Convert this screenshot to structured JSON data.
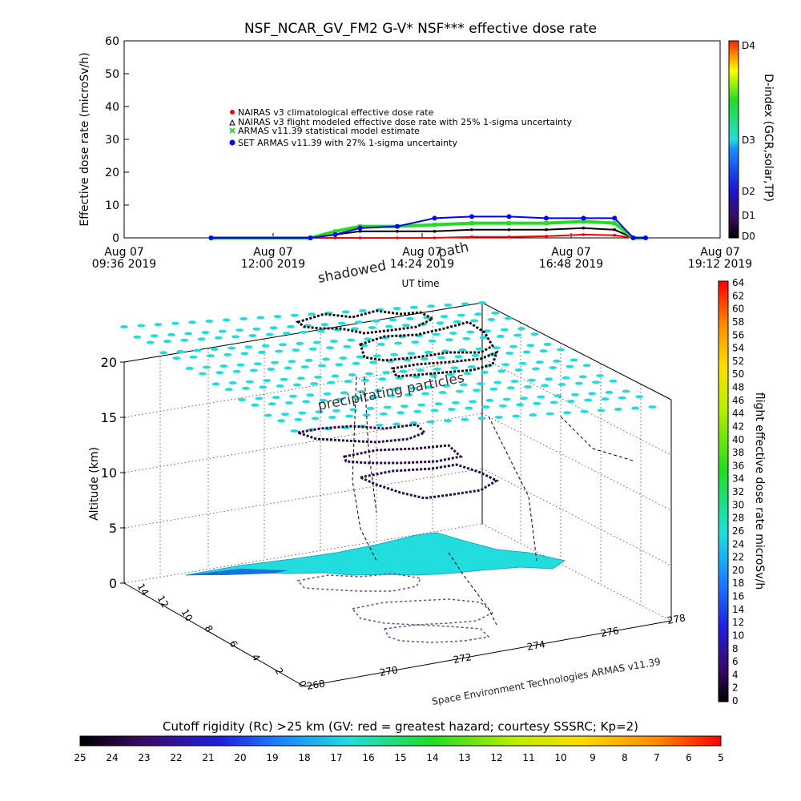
{
  "title": "NSF_NCAR_GV_FM2 G-V* NSF*** effective dose rate",
  "colors": {
    "nairas_clim": "#ff0000",
    "nairas_flight": "#000000",
    "armas_stat": "#22dd22",
    "set_armas": "#0000ff",
    "cyan": "#22dddd"
  },
  "top_chart": {
    "ylabel": "Effective dose rate (microSv/h)",
    "xlabel": "UT time",
    "y_ticks": [
      "0",
      "10",
      "20",
      "30",
      "40",
      "50",
      "60"
    ],
    "x_ticks": [
      {
        "line1": "Aug 07",
        "line2": "09:36 2019"
      },
      {
        "line1": "Aug 07",
        "line2": "12:00 2019"
      },
      {
        "line1": "Aug 07",
        "line2": "14:24 2019"
      },
      {
        "line1": "Aug 07",
        "line2": "16:48 2019"
      },
      {
        "line1": "Aug 07",
        "line2": "19:12 2019"
      }
    ],
    "legend": [
      "NAIRAS v3 climatological effective dose rate",
      "NAIRAS v3 flight modeled effective dose rate with 25% 1-sigma uncertainty",
      "ARMAS v11.39 statistical model estimate",
      "SET ARMAS v11.39 with 27% 1-sigma uncertainty"
    ],
    "d_index_label": "D-index (GCR,solar,TP)",
    "d_ticks": [
      "D0",
      "D1",
      "D2",
      "D3",
      "D4"
    ]
  },
  "overlay_text": {
    "shadowed": "shadowed",
    "path": "path",
    "precip": "precipitating particles",
    "credit": "Space Environment Technologies ARMAS v11.39"
  },
  "bottom_chart": {
    "zlabel": "Altitude (km)",
    "z_ticks": [
      "0",
      "5",
      "10",
      "15",
      "20"
    ],
    "x_ticks": [
      "268",
      "270",
      "272",
      "274",
      "276",
      "278"
    ],
    "y_ticks": [
      "0",
      "2",
      "4",
      "6",
      "8",
      "10",
      "12",
      "14"
    ],
    "right_colorbar_label": "flight effective dose rate microSv/h",
    "right_colorbar_ticks": [
      "0",
      "2",
      "4",
      "6",
      "8",
      "10",
      "12",
      "14",
      "16",
      "18",
      "20",
      "22",
      "24",
      "26",
      "28",
      "30",
      "32",
      "34",
      "36",
      "38",
      "40",
      "42",
      "44",
      "46",
      "48",
      "50",
      "52",
      "54",
      "56",
      "58",
      "60",
      "62",
      "64"
    ],
    "bottom_colorbar_label": "Cutoff rigidity (Rc) >25 km (GV: red = greatest hazard; courtesy SSSRC; Kp=2)",
    "bottom_colorbar_ticks": [
      "25",
      "24",
      "23",
      "22",
      "21",
      "20",
      "19",
      "18",
      "17",
      "16",
      "15",
      "14",
      "13",
      "12",
      "11",
      "10",
      "9",
      "8",
      "7",
      "6",
      "5"
    ]
  },
  "chart_data": {
    "type": "line",
    "title": "NSF_NCAR_GV_FM2 G-V* NSF*** effective dose rate",
    "xlabel": "UT time",
    "ylabel": "Effective dose rate (microSv/h)",
    "xlim": [
      "09:36",
      "19:12"
    ],
    "ylim": [
      0,
      60
    ],
    "grid": false,
    "legend_position": "upper-center",
    "x_hours": [
      11.0,
      12.6,
      13.0,
      13.4,
      14.0,
      14.6,
      15.2,
      15.8,
      16.4,
      17.0,
      17.5,
      17.8,
      18.0
    ],
    "series": [
      {
        "name": "NAIRAS v3 climatological effective dose rate",
        "values": [
          0,
          0,
          0,
          0,
          0,
          0,
          0.3,
          0.3,
          0.5,
          1.0,
          0.8,
          0,
          0
        ]
      },
      {
        "name": "NAIRAS v3 flight modeled effective dose rate with 25% 1-sigma uncertainty",
        "values": [
          0,
          0,
          1.0,
          2.0,
          2.0,
          2.0,
          2.5,
          2.5,
          2.5,
          3.0,
          2.5,
          0,
          0
        ]
      },
      {
        "name": "ARMAS v11.39 statistical model estimate",
        "values": [
          0,
          0,
          2.0,
          3.5,
          3.5,
          4.0,
          4.5,
          4.5,
          4.5,
          5.0,
          4.5,
          0,
          0
        ]
      },
      {
        "name": "SET ARMAS v11.39 with 27% 1-sigma uncertainty",
        "values": [
          0,
          0,
          1.0,
          3.0,
          3.5,
          6.0,
          6.5,
          6.5,
          6.0,
          6.0,
          6.0,
          0,
          0
        ]
      }
    ]
  }
}
